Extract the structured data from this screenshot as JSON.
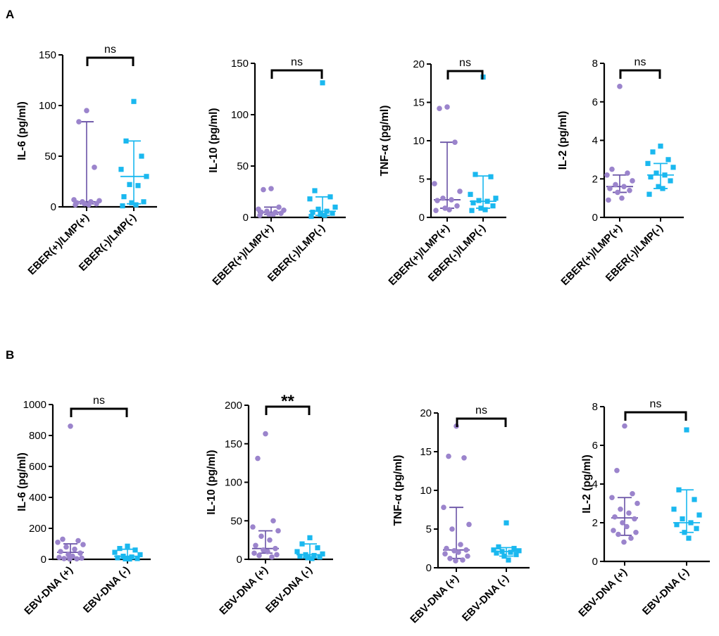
{
  "figure": {
    "panel_a_label": "A",
    "panel_b_label": "B"
  },
  "colors": {
    "group1": "#9b84cc",
    "group1_line": "#6a53a6",
    "group2": "#1ab8ef",
    "axis": "#000000"
  },
  "chart_data": [
    {
      "type": "scatter",
      "panel": "A",
      "ylabel": "IL-6 (pg/ml)",
      "ylim": [
        0,
        150
      ],
      "yticks": [
        "0",
        "50",
        "100",
        "150"
      ],
      "categories": [
        "EBER(+)/LMP(+)",
        "EBER(-)/LMP(-)"
      ],
      "significance": "ns",
      "series": [
        {
          "name": "EBER(+)/LMP(+)",
          "marker": "circle",
          "median": 5,
          "q1": 3,
          "q3": 84,
          "values": [
            95,
            84,
            39,
            7,
            6,
            5,
            5,
            4,
            3,
            3,
            2,
            2
          ]
        },
        {
          "name": "EBER(-)/LMP(-)",
          "marker": "square",
          "median": 30,
          "q1": 3,
          "q3": 65,
          "values": [
            104,
            65,
            50,
            37,
            30,
            22,
            21,
            10,
            5,
            4,
            2,
            1
          ]
        }
      ]
    },
    {
      "type": "scatter",
      "panel": "A",
      "ylabel": "IL-10 (pg/ml)",
      "ylim": [
        0,
        150
      ],
      "yticks": [
        "0",
        "50",
        "100",
        "150"
      ],
      "categories": [
        "EBER(+)/LMP(+)",
        "EBER(-)/LMP(-)"
      ],
      "significance": "ns",
      "series": [
        {
          "name": "EBER(+)/LMP(+)",
          "marker": "circle",
          "median": 5,
          "q1": 3,
          "q3": 10,
          "values": [
            28,
            27,
            10,
            8,
            7,
            6,
            5,
            5,
            4,
            3,
            3,
            2
          ]
        },
        {
          "name": "EBER(-)/LMP(-)",
          "marker": "square",
          "median": 6,
          "q1": 2,
          "q3": 20,
          "values": [
            131,
            26,
            20,
            18,
            10,
            8,
            6,
            5,
            4,
            3,
            2,
            1
          ]
        }
      ]
    },
    {
      "type": "scatter",
      "panel": "A",
      "ylabel": "TNF-α (pg/ml)",
      "ylim": [
        0,
        20
      ],
      "yticks": [
        "0",
        "5",
        "10",
        "15",
        "20"
      ],
      "categories": [
        "EBER(+)/LMP(+)",
        "EBER(-)/LMP(-)"
      ],
      "significance": "ns",
      "series": [
        {
          "name": "EBER(+)/LMP(+)",
          "marker": "circle",
          "median": 2.3,
          "q1": 1.2,
          "q3": 9.8,
          "values": [
            14.4,
            14.2,
            9.8,
            4.4,
            3.4,
            2.5,
            2.3,
            2.2,
            1.5,
            1.2,
            1.0,
            0.9
          ]
        },
        {
          "name": "EBER(-)/LMP(-)",
          "marker": "square",
          "median": 2.1,
          "q1": 1.2,
          "q3": 5.4,
          "values": [
            18.3,
            5.6,
            5.3,
            3.0,
            2.5,
            2.2,
            2.1,
            1.9,
            1.5,
            1.2,
            1.0,
            0.9
          ]
        }
      ]
    },
    {
      "type": "scatter",
      "panel": "A",
      "ylabel": "IL-2 (pg/ml)",
      "ylim": [
        0,
        8
      ],
      "yticks": [
        "0",
        "2",
        "4",
        "6",
        "8"
      ],
      "categories": [
        "EBER(+)/LMP(+)",
        "EBER(-)/LMP(-)"
      ],
      "significance": "ns",
      "series": [
        {
          "name": "EBER(+)/LMP(+)",
          "marker": "circle",
          "median": 1.6,
          "q1": 1.3,
          "q3": 2.2,
          "values": [
            6.8,
            2.5,
            2.3,
            2.2,
            1.9,
            1.7,
            1.6,
            1.5,
            1.4,
            1.3,
            1.0,
            0.9
          ]
        },
        {
          "name": "EBER(-)/LMP(-)",
          "marker": "square",
          "median": 2.2,
          "q1": 1.5,
          "q3": 2.8,
          "values": [
            3.7,
            3.4,
            3.0,
            2.8,
            2.6,
            2.3,
            2.2,
            2.1,
            1.9,
            1.6,
            1.5,
            1.2
          ]
        }
      ]
    },
    {
      "type": "scatter",
      "panel": "B",
      "ylabel": "IL-6 (pg/ml)",
      "ylim": [
        0,
        1000
      ],
      "yticks": [
        "0",
        "200",
        "400",
        "600",
        "800",
        "1000"
      ],
      "categories": [
        "EBV-DNA (+)",
        "EBV-DNA (-)"
      ],
      "significance": "ns",
      "series": [
        {
          "name": "EBV-DNA (+)",
          "marker": "circle",
          "median": 45,
          "q1": 8,
          "q3": 100,
          "values": [
            860,
            130,
            120,
            110,
            95,
            80,
            65,
            50,
            40,
            30,
            20,
            12,
            8,
            5,
            3,
            2
          ]
        },
        {
          "name": "EBV-DNA (-)",
          "marker": "square",
          "median": 20,
          "q1": 5,
          "q3": 65,
          "values": [
            85,
            70,
            60,
            45,
            30,
            20,
            15,
            10,
            5,
            3,
            2
          ]
        }
      ]
    },
    {
      "type": "scatter",
      "panel": "B",
      "ylabel": "IL-10 (pg/ml)",
      "ylim": [
        0,
        200
      ],
      "yticks": [
        "0",
        "50",
        "100",
        "150",
        "200"
      ],
      "categories": [
        "EBV-DNA (+)",
        "EBV-DNA (-)"
      ],
      "significance": "**",
      "series": [
        {
          "name": "EBV-DNA (+)",
          "marker": "circle",
          "median": 14,
          "q1": 8,
          "q3": 37,
          "values": [
            163,
            131,
            50,
            42,
            37,
            30,
            25,
            18,
            14,
            12,
            10,
            8,
            6,
            5,
            3
          ]
        },
        {
          "name": "EBV-DNA (-)",
          "marker": "square",
          "median": 6,
          "q1": 2,
          "q3": 20,
          "values": [
            28,
            20,
            15,
            10,
            7,
            6,
            5,
            4,
            3,
            2,
            1
          ]
        }
      ]
    },
    {
      "type": "scatter",
      "panel": "B",
      "ylabel": "TNF-α (pg/ml)",
      "ylim": [
        0,
        20
      ],
      "yticks": [
        "0",
        "5",
        "10",
        "15",
        "20"
      ],
      "categories": [
        "EBV-DNA (+)",
        "EBV-DNA (-)"
      ],
      "significance": "ns",
      "series": [
        {
          "name": "EBV-DNA (+)",
          "marker": "circle",
          "median": 2.3,
          "q1": 1.2,
          "q3": 7.8,
          "values": [
            18.3,
            14.4,
            14.2,
            7.8,
            5.6,
            5.0,
            3.0,
            2.5,
            2.3,
            2.2,
            2.0,
            1.8,
            1.5,
            1.2,
            1.0,
            0.9
          ]
        },
        {
          "name": "EBV-DNA (-)",
          "marker": "square",
          "median": 2.1,
          "q1": 1.5,
          "q3": 2.6,
          "values": [
            5.8,
            2.7,
            2.5,
            2.3,
            2.2,
            2.1,
            2.0,
            1.9,
            1.7,
            1.5,
            1.0
          ]
        }
      ]
    },
    {
      "type": "scatter",
      "panel": "B",
      "ylabel": "IL-2 (pg/ml)",
      "ylim": [
        0,
        8
      ],
      "yticks": [
        "0",
        "2",
        "4",
        "6",
        "8"
      ],
      "categories": [
        "EBV-DNA (+)",
        "EBV-DNA (-)"
      ],
      "significance": "ns",
      "series": [
        {
          "name": "EBV-DNA (+)",
          "marker": "circle",
          "median": 2.25,
          "q1": 1.35,
          "q3": 3.3,
          "values": [
            7.0,
            4.7,
            3.5,
            3.3,
            3.0,
            2.7,
            2.5,
            2.3,
            2.2,
            2.0,
            1.8,
            1.6,
            1.5,
            1.4,
            1.2,
            1.0
          ]
        },
        {
          "name": "EBV-DNA (-)",
          "marker": "square",
          "median": 2.0,
          "q1": 1.5,
          "q3": 3.7,
          "values": [
            6.8,
            3.7,
            3.2,
            2.7,
            2.4,
            2.2,
            2.0,
            1.9,
            1.7,
            1.5,
            1.2
          ]
        }
      ]
    }
  ]
}
